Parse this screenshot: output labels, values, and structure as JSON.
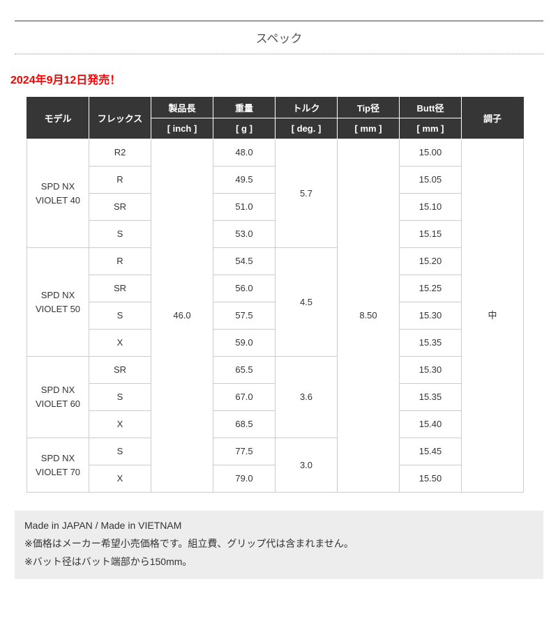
{
  "page": {
    "title": "スペック",
    "release_note": "2024年9月12日発売！"
  },
  "spec_table": {
    "headers": {
      "model": "モデル",
      "flex": "フレックス",
      "length": "製品長",
      "length_unit": "[ inch ]",
      "weight": "重量",
      "weight_unit": "[ g ]",
      "torque": "トルク",
      "torque_unit": "[ deg. ]",
      "tip": "Tip径",
      "tip_unit": "[ mm ]",
      "butt": "Butt径",
      "butt_unit": "[ mm ]",
      "kick": "調子"
    },
    "shared": {
      "length_inch": "46.0",
      "tip_diameter_mm": "8.50",
      "kick_point": "中"
    },
    "groups": [
      {
        "model": "SPD NX VIOLET 40",
        "torque_deg": "5.7",
        "rows": [
          {
            "flex": "R2",
            "weight_g": "48.0",
            "butt_mm": "15.00"
          },
          {
            "flex": "R",
            "weight_g": "49.5",
            "butt_mm": "15.05"
          },
          {
            "flex": "SR",
            "weight_g": "51.0",
            "butt_mm": "15.10"
          },
          {
            "flex": "S",
            "weight_g": "53.0",
            "butt_mm": "15.15"
          }
        ]
      },
      {
        "model": "SPD NX VIOLET 50",
        "torque_deg": "4.5",
        "rows": [
          {
            "flex": "R",
            "weight_g": "54.5",
            "butt_mm": "15.20"
          },
          {
            "flex": "SR",
            "weight_g": "56.0",
            "butt_mm": "15.25"
          },
          {
            "flex": "S",
            "weight_g": "57.5",
            "butt_mm": "15.30"
          },
          {
            "flex": "X",
            "weight_g": "59.0",
            "butt_mm": "15.35"
          }
        ]
      },
      {
        "model": "SPD NX VIOLET 60",
        "torque_deg": "3.6",
        "rows": [
          {
            "flex": "SR",
            "weight_g": "65.5",
            "butt_mm": "15.30"
          },
          {
            "flex": "S",
            "weight_g": "67.0",
            "butt_mm": "15.35"
          },
          {
            "flex": "X",
            "weight_g": "68.5",
            "butt_mm": "15.40"
          }
        ]
      },
      {
        "model": "SPD NX VIOLET 70",
        "torque_deg": "3.0",
        "rows": [
          {
            "flex": "S",
            "weight_g": "77.5",
            "butt_mm": "15.45"
          },
          {
            "flex": "X",
            "weight_g": "79.0",
            "butt_mm": "15.50"
          }
        ]
      }
    ]
  },
  "footer": {
    "lines": [
      "Made in JAPAN / Made in VIETNAM",
      "※価格はメーカー希望小売価格です。組立費、グリップ代は含まれません。",
      "※バット径はバット端部から150mm。"
    ]
  }
}
